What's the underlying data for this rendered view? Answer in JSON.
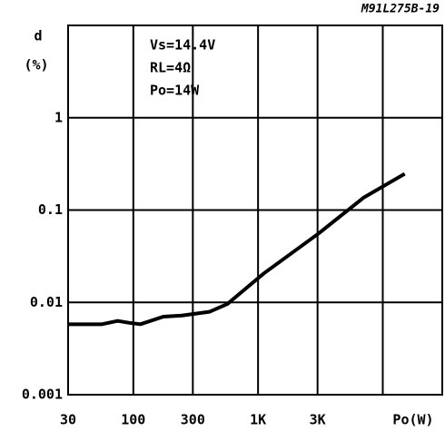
{
  "chart_data": {
    "type": "line",
    "code": "M91L275B-19",
    "ylabel": [
      "d",
      "(%)"
    ],
    "xlabel": "Po(W)",
    "annotation": [
      "Vs=14.4V",
      "RL=4Ω",
      "Po=14W"
    ],
    "log_x": true,
    "log_y": true,
    "grid": true,
    "xlim": [
      30,
      30000
    ],
    "ylim": [
      0.001,
      10
    ],
    "xticks": [
      30,
      100,
      300,
      {
        "value": 1000,
        "label": "1K"
      },
      {
        "value": 3000,
        "label": "3K"
      }
    ],
    "xgrid_extra": [
      10000
    ],
    "yticks": [
      0.001,
      0.01,
      0.1,
      1
    ],
    "x": [
      30,
      56,
      75,
      93,
      114,
      174,
      245,
      407,
      567,
      1113,
      3050,
      7060,
      15000
    ],
    "series": [
      {
        "name": null,
        "color": "#000000",
        "values": [
          0.0058,
          0.0058,
          0.0063,
          0.006,
          0.0058,
          0.007,
          0.0072,
          0.0079,
          0.0096,
          0.0206,
          0.0556,
          0.137,
          0.247
        ]
      }
    ]
  }
}
